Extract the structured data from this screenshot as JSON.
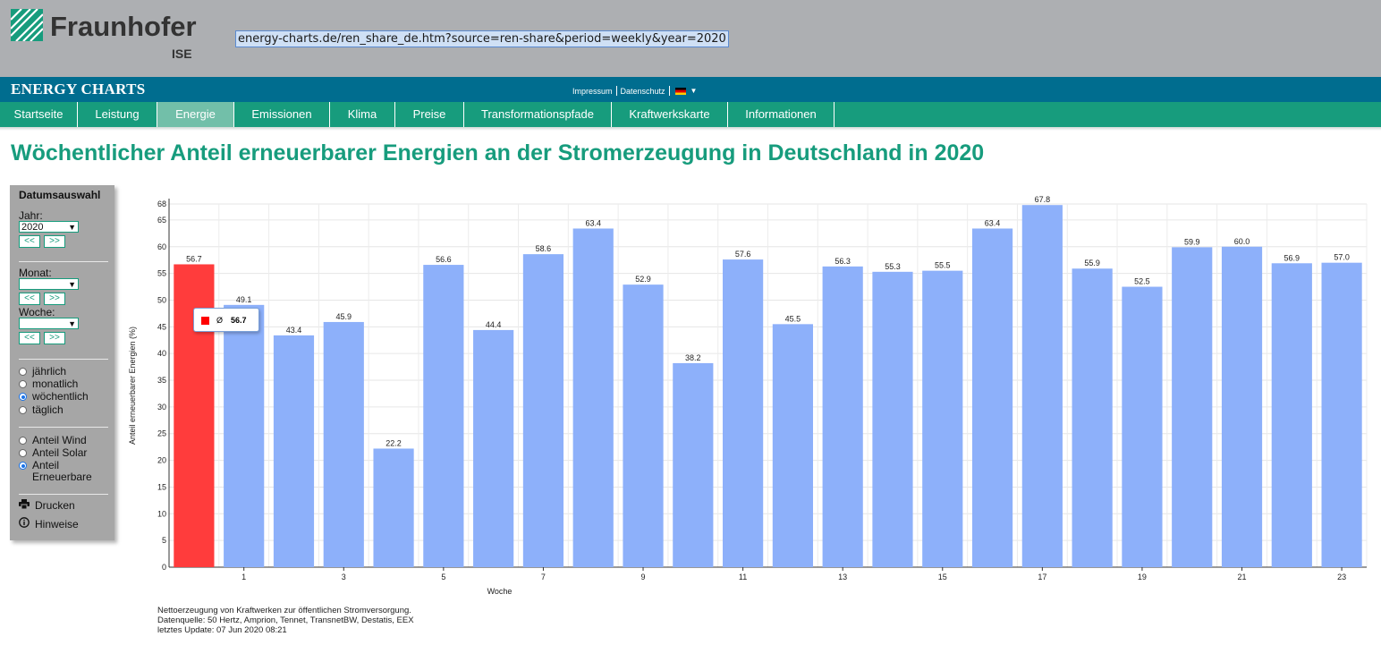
{
  "header": {
    "logo_name": "Fraunhofer",
    "logo_sub": "ISE",
    "url": "energy-charts.de/ren_share_de.htm?source=ren-share&period=weekly&year=2020"
  },
  "brandbar": {
    "brand": "ENERGY CHARTS",
    "links": [
      "Impressum",
      "Datenschutz"
    ],
    "lang_icon": "german-flag-icon"
  },
  "nav": {
    "items": [
      "Startseite",
      "Leistung",
      "Energie",
      "Emissionen",
      "Klima",
      "Preise",
      "Transformationspfade",
      "Kraftwerkskarte",
      "Informationen"
    ],
    "active": "Energie"
  },
  "page_title": "Wöchentlicher Anteil erneuerbarer Energien an der Stromerzeugung in Deutschland in 2020",
  "sidebar": {
    "heading": "Datumsauswahl",
    "year_label": "Jahr:",
    "year_value": "2020",
    "month_label": "Monat:",
    "month_value": "",
    "week_label": "Woche:",
    "week_value": "",
    "prev": "<<",
    "next": ">>",
    "period_options": [
      "jährlich",
      "monatlich",
      "wöchentlich",
      "täglich"
    ],
    "period_selected": "wöchentlich",
    "source_options": [
      "Anteil Wind",
      "Anteil Solar",
      "Anteil Erneuerbare"
    ],
    "source_selected": "Anteil Erneuerbare",
    "print_label": "Drucken",
    "print_icon": "printer-icon",
    "info_label": "Hinweise",
    "info_icon": "info-icon"
  },
  "chart_data": {
    "type": "bar",
    "categories": [
      "Ø",
      "1",
      "2",
      "3",
      "4",
      "5",
      "6",
      "7",
      "8",
      "9",
      "10",
      "11",
      "12",
      "13",
      "14",
      "15",
      "16",
      "17",
      "18",
      "19",
      "20",
      "21",
      "22",
      "23"
    ],
    "values": [
      56.7,
      49.1,
      43.4,
      45.9,
      22.2,
      56.6,
      44.4,
      58.6,
      63.4,
      52.9,
      38.2,
      57.6,
      45.5,
      56.3,
      55.3,
      55.5,
      63.4,
      67.8,
      55.9,
      52.5,
      59.9,
      60.0,
      56.9,
      57.0
    ],
    "average_bar_color": "#ff3c3c",
    "bar_color": "#8db0fa",
    "xlabel": "Woche",
    "ylabel": "Anteil erneuerbarer Energien (%)",
    "ylim": [
      0,
      68
    ],
    "yticks": [
      0,
      5,
      10,
      15,
      20,
      25,
      30,
      35,
      40,
      45,
      50,
      55,
      60,
      65,
      68
    ],
    "xticks_shown": [
      "1",
      "3",
      "5",
      "7",
      "9",
      "11",
      "13",
      "15",
      "17",
      "19",
      "21",
      "23"
    ],
    "grid": true,
    "tooltip": {
      "symbol": "Ø",
      "value": "56.7",
      "color": "#ff0000"
    }
  },
  "footnote": [
    "Nettoerzeugung von Kraftwerken zur öffentlichen Stromversorgung.",
    "Datenquelle: 50 Hertz, Amprion, Tennet, TransnetBW, Destatis, EEX",
    "letztes Update: 07 Jun 2020 08:21"
  ]
}
